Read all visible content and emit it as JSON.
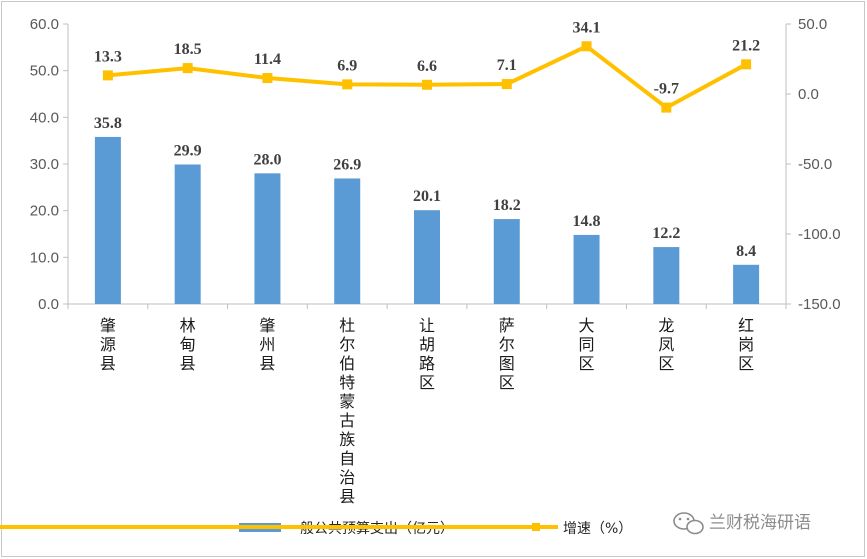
{
  "chart_data": {
    "type": "bar+line",
    "categories": [
      "肇源县",
      "林甸县",
      "肇州县",
      "杜尔伯特蒙古族自治县",
      "让胡路区",
      "萨尔图区",
      "大同区",
      "龙凤区",
      "红岗区"
    ],
    "series": [
      {
        "name": "一般公共预算支出（亿元）",
        "type": "bar",
        "axis": "left",
        "color": "#5b9bd5",
        "values": [
          35.8,
          29.9,
          28.0,
          26.9,
          20.1,
          18.2,
          14.8,
          12.2,
          8.4
        ],
        "labels": [
          "35.8",
          "29.9",
          "28.0",
          "26.9",
          "20.1",
          "18.2",
          "14.8",
          "12.2",
          "8.4"
        ]
      },
      {
        "name": "增速（%）",
        "type": "line",
        "axis": "right",
        "color": "#ffc000",
        "values": [
          13.3,
          18.5,
          11.4,
          6.9,
          6.6,
          7.1,
          34.1,
          -9.7,
          21.2
        ],
        "labels": [
          "13.3",
          "18.5",
          "11.4",
          "6.9",
          "6.6",
          "7.1",
          "34.1",
          "-9.7",
          "21.2"
        ],
        "negative_label_color": "#ff0000"
      }
    ],
    "y_left": {
      "min": 0,
      "max": 60,
      "ticks": [
        "0.0",
        "10.0",
        "20.0",
        "30.0",
        "40.0",
        "50.0",
        "60.0"
      ]
    },
    "y_right": {
      "min": -150,
      "max": 50,
      "ticks": [
        "-150.0",
        "-100.0",
        "-50.0",
        "0.0",
        "50.0"
      ]
    },
    "grid": false,
    "legend_position": "bottom"
  },
  "watermark": {
    "text": "兰财税海研语",
    "icon": "wechat-icon"
  }
}
